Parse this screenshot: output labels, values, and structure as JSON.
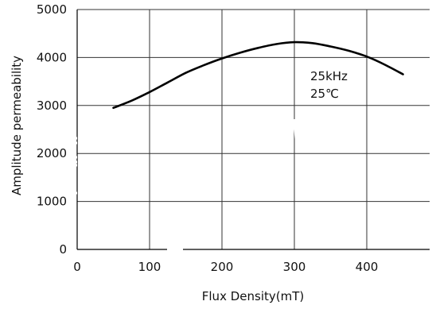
{
  "chart_data": {
    "type": "line",
    "title": "",
    "xlabel": "Flux Density(mT)",
    "ylabel": "Amplitude permeability",
    "xlim": [
      0,
      450
    ],
    "ylim": [
      0,
      5000
    ],
    "x_ticks": [
      0,
      100,
      200,
      300,
      400
    ],
    "y_ticks": [
      0,
      1000,
      2000,
      3000,
      4000,
      5000
    ],
    "x_tick_labels": [
      "0",
      "100",
      "200",
      "300",
      "400"
    ],
    "y_tick_labels": [
      "0",
      "1000",
      "2000",
      "3000",
      "4000",
      "5000"
    ],
    "grid": true,
    "series": [
      {
        "x": [
          50,
          75,
          100,
          125,
          150,
          175,
          200,
          225,
          250,
          275,
          300,
          325,
          350,
          375,
          400,
          425,
          450
        ],
        "values": [
          2950,
          3100,
          3280,
          3480,
          3680,
          3840,
          3980,
          4100,
          4200,
          4280,
          4320,
          4300,
          4230,
          4140,
          4020,
          3850,
          3650
        ]
      }
    ],
    "annotations": [
      "25kHz",
      "25℃"
    ]
  }
}
